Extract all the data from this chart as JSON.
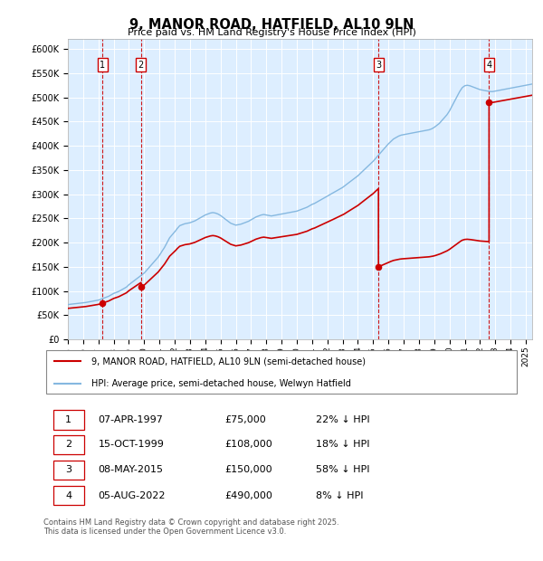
{
  "title": "9, MANOR ROAD, HATFIELD, AL10 9LN",
  "subtitle": "Price paid vs. HM Land Registry's House Price Index (HPI)",
  "legend_line1": "9, MANOR ROAD, HATFIELD, AL10 9LN (semi-detached house)",
  "legend_line2": "HPI: Average price, semi-detached house, Welwyn Hatfield",
  "footer": "Contains HM Land Registry data © Crown copyright and database right 2025.\nThis data is licensed under the Open Government Licence v3.0.",
  "price_color": "#cc0000",
  "hpi_color": "#85b8e0",
  "dashed_line_color": "#cc0000",
  "sale_box_color": "#cc0000",
  "background_chart": "#ddeeff",
  "ylim": [
    0,
    620000
  ],
  "yticks": [
    0,
    50000,
    100000,
    150000,
    200000,
    250000,
    300000,
    350000,
    400000,
    450000,
    500000,
    550000,
    600000
  ],
  "sales": [
    {
      "num": 1,
      "date": "1997-04-07",
      "price": 75000
    },
    {
      "num": 2,
      "date": "1999-10-15",
      "price": 108000
    },
    {
      "num": 3,
      "date": "2015-05-08",
      "price": 150000
    },
    {
      "num": 4,
      "date": "2022-08-05",
      "price": 490000
    }
  ],
  "table_rows": [
    [
      "1",
      "07-APR-1997",
      "£75,000",
      "22% ↓ HPI"
    ],
    [
      "2",
      "15-OCT-1999",
      "£108,000",
      "18% ↓ HPI"
    ],
    [
      "3",
      "08-MAY-2015",
      "£150,000",
      "58% ↓ HPI"
    ],
    [
      "4",
      "05-AUG-2022",
      "£490,000",
      "8% ↓ HPI"
    ]
  ],
  "hpi_monthly": {
    "start_year": 1995,
    "start_month": 1,
    "values": [
      72000,
      72300,
      72600,
      72900,
      73200,
      73500,
      73800,
      74100,
      74400,
      74700,
      75000,
      75300,
      75600,
      75900,
      76200,
      76700,
      77200,
      77700,
      78200,
      78700,
      79200,
      79700,
      80200,
      80700,
      81200,
      82000,
      83000,
      84000,
      85000,
      86000,
      87000,
      88000,
      89000,
      90500,
      92000,
      93500,
      95000,
      96000,
      97000,
      98000,
      99000,
      100500,
      102000,
      103500,
      105000,
      106500,
      108000,
      110500,
      113000,
      115000,
      117000,
      119000,
      121000,
      123000,
      125000,
      127000,
      129000,
      131000,
      133000,
      135000,
      137000,
      140000,
      143000,
      146000,
      149000,
      152000,
      155000,
      158000,
      161000,
      164000,
      167000,
      170000,
      174000,
      178000,
      182000,
      186000,
      190000,
      195000,
      200000,
      205000,
      210000,
      213000,
      216000,
      219000,
      222000,
      225500,
      229000,
      232000,
      235000,
      236000,
      237000,
      238000,
      239000,
      239500,
      240000,
      240500,
      241000,
      242000,
      243000,
      244000,
      245000,
      246500,
      248000,
      249500,
      251000,
      252500,
      254000,
      255500,
      257000,
      258000,
      259000,
      260000,
      261000,
      261500,
      262000,
      261500,
      261000,
      260000,
      259000,
      257500,
      256000,
      254000,
      252000,
      250000,
      248000,
      246000,
      244000,
      242000,
      240000,
      239000,
      238000,
      237000,
      236000,
      236500,
      237000,
      237500,
      238000,
      239000,
      240000,
      241000,
      242000,
      243000,
      244000,
      245500,
      247000,
      248500,
      250000,
      251500,
      253000,
      254000,
      255000,
      256000,
      257000,
      257500,
      258000,
      257500,
      257000,
      256500,
      256000,
      255500,
      255000,
      255500,
      256000,
      256500,
      257000,
      257500,
      258000,
      258500,
      259000,
      259500,
      260000,
      260500,
      261000,
      261500,
      262000,
      262500,
      263000,
      263500,
      264000,
      264500,
      265000,
      266000,
      267000,
      268000,
      269000,
      270000,
      271000,
      272000,
      273000,
      274500,
      276000,
      277500,
      279000,
      280000,
      281000,
      282500,
      284000,
      285500,
      287000,
      288500,
      290000,
      291500,
      293000,
      294500,
      296000,
      297500,
      299000,
      300500,
      302000,
      303500,
      305000,
      306500,
      308000,
      309500,
      311000,
      312500,
      314000,
      316000,
      318000,
      320000,
      322000,
      324000,
      326000,
      328000,
      330000,
      332000,
      334000,
      336000,
      338000,
      340500,
      343000,
      345500,
      348000,
      350500,
      353000,
      355500,
      358000,
      360500,
      363000,
      365500,
      368000,
      371000,
      374000,
      377000,
      380000,
      383000,
      386000,
      389000,
      392000,
      395000,
      398000,
      401000,
      404000,
      406500,
      409000,
      411500,
      414000,
      415500,
      417000,
      418500,
      420000,
      421000,
      422000,
      422500,
      423000,
      423500,
      424000,
      424500,
      425000,
      425500,
      426000,
      426500,
      427000,
      427500,
      428000,
      428500,
      429000,
      429500,
      430000,
      430500,
      431000,
      431500,
      432000,
      432500,
      433000,
      434000,
      435000,
      436500,
      438000,
      440000,
      442000,
      444000,
      446000,
      449000,
      452000,
      455000,
      458000,
      461000,
      464000,
      468000,
      472000,
      477000,
      482000,
      487000,
      492000,
      497000,
      502000,
      507000,
      512000,
      516000,
      520000,
      522000,
      524000,
      524500,
      525000,
      524500,
      524000,
      523000,
      522000,
      521000,
      520000,
      519000,
      518000,
      517000,
      516000,
      515500,
      515000,
      514500,
      514000,
      513500,
      513000,
      512500,
      512000,
      512000,
      512000,
      512500,
      513000,
      513500,
      514000,
      514500,
      515000,
      515500,
      516000,
      516500,
      517000,
      517500,
      518000,
      518500,
      519000,
      519500,
      520000,
      520500,
      521000,
      521500,
      522000,
      522500,
      523000,
      523500,
      524000,
      524500,
      525000,
      525500,
      526000,
      526500,
      527000,
      527500,
      528000,
      528500,
      529000,
      529500,
      530000,
      530500
    ]
  }
}
